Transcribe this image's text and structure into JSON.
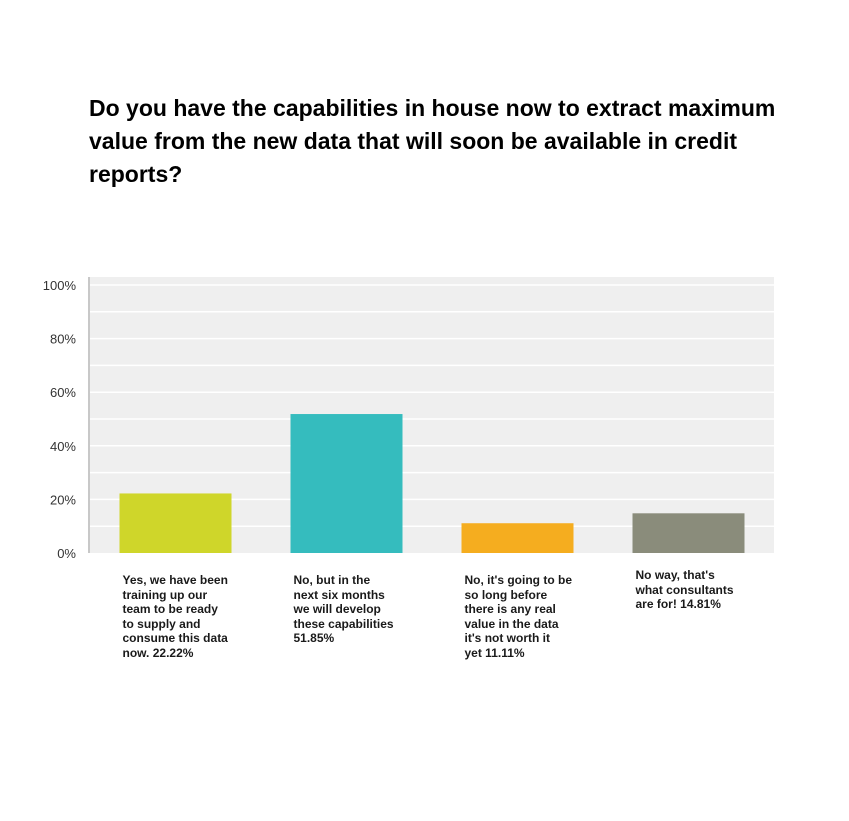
{
  "chart_data": {
    "type": "bar",
    "title": "Do you have the capabilities in house now to extract maximum value from the new data that will soon be available in credit reports?",
    "categories": [
      "Yes, we have been\ntraining up our\nteam to be ready\nto supply and\nconsume this data\nnow.  22.22%",
      "No, but in the\nnext six months\nwe will develop\nthese capabilities\n51.85%",
      "No, it's going to be\nso long before\nthere is any real\nvalue in the data\nit's not worth it\nyet  11.11%",
      "No way, that's\nwhat consultants\nare for!  14.81%"
    ],
    "values": [
      22.22,
      51.85,
      11.11,
      14.81
    ],
    "colors": [
      "#cfd62a",
      "#35bcbe",
      "#f5ad1f",
      "#8a8c7b"
    ],
    "ylim": [
      0,
      100
    ],
    "yticks": [
      "0%",
      "20%",
      "40%",
      "60%",
      "80%",
      "100%"
    ],
    "grid": true,
    "xlabel": "",
    "ylabel": ""
  }
}
